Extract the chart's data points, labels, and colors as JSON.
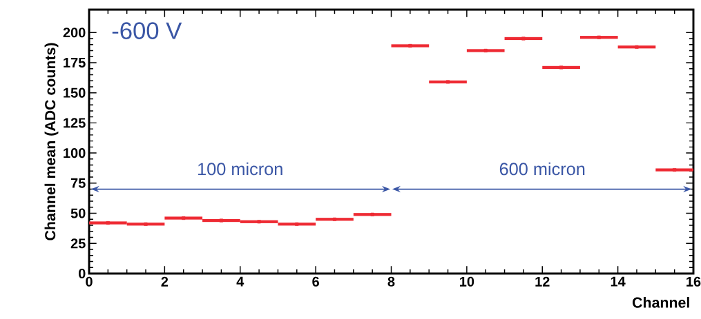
{
  "chart_data": {
    "type": "scatter",
    "marker": "square",
    "x": [
      0.5,
      1.5,
      2.5,
      3.5,
      4.5,
      5.5,
      6.5,
      7.5,
      8.5,
      9.5,
      10.5,
      11.5,
      12.5,
      13.5,
      14.5,
      15.5
    ],
    "xerrors": [
      0.5,
      0.5,
      0.5,
      0.5,
      0.5,
      0.5,
      0.5,
      0.5,
      0.5,
      0.5,
      0.5,
      0.5,
      0.5,
      0.5,
      0.5,
      0.5
    ],
    "xlabel": "Channel",
    "ylabel": "Channel mean (ADC counts)",
    "values": [
      42,
      41,
      46,
      44,
      43,
      41,
      45,
      49,
      189,
      159,
      185,
      195,
      171,
      196,
      188,
      86
    ],
    "color": "#ee2a33",
    "xlim": [
      0,
      16
    ],
    "xticks": [
      0,
      2,
      4,
      6,
      8,
      10,
      12,
      14,
      16
    ],
    "ylim": [
      0,
      219
    ],
    "yticks": [
      0,
      25,
      50,
      75,
      100,
      125,
      150,
      175,
      200
    ],
    "annotations": [
      "-600 V",
      "100 micron",
      "600 micron"
    ],
    "grid": false
  }
}
